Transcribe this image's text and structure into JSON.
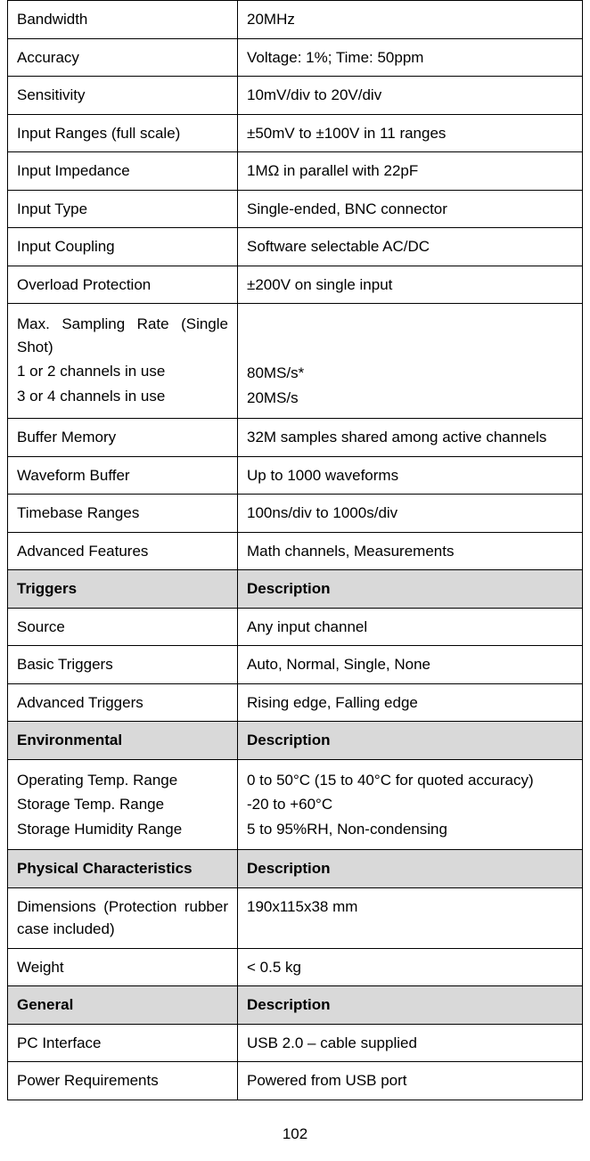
{
  "sections": [
    {
      "header": null,
      "rows": [
        {
          "label": "Bandwidth",
          "value": "20MHz"
        },
        {
          "label": "Accuracy",
          "value": "Voltage: 1%; Time: 50ppm"
        },
        {
          "label": "Sensitivity",
          "value": "10mV/div to 20V/div"
        },
        {
          "label": "Input Ranges (full scale)",
          "value": "±50mV to ±100V in 11 ranges"
        },
        {
          "label": "Input Impedance",
          "value": "1MΩ in parallel with 22pF"
        },
        {
          "label": "Input Type",
          "value": "Single-ended, BNC connector"
        },
        {
          "label": "Input Coupling",
          "value": "Software selectable AC/DC"
        },
        {
          "label": "Overload Protection",
          "value": "±200V on single input"
        },
        {
          "label_lines": [
            "Max. Sampling Rate (Single Shot)",
            "1 or 2 channels in use",
            "3 or 4 channels in use"
          ],
          "value_lines": [
            "",
            "",
            "80MS/s*",
            "20MS/s"
          ]
        },
        {
          "label": "Buffer Memory",
          "value": "32M samples shared among active channels"
        },
        {
          "label": "Waveform Buffer",
          "value": "Up to 1000 waveforms"
        },
        {
          "label": "Timebase Ranges",
          "value": "100ns/div to 1000s/div"
        },
        {
          "label": "Advanced Features",
          "value": "Math channels, Measurements"
        }
      ]
    },
    {
      "header": {
        "left": "Triggers",
        "right": "Description"
      },
      "rows": [
        {
          "label": "Source",
          "value": "Any input channel"
        },
        {
          "label": "Basic Triggers",
          "value": "Auto, Normal, Single, None"
        },
        {
          "label": "Advanced Triggers",
          "value": "Rising edge, Falling edge"
        }
      ]
    },
    {
      "header": {
        "left": "Environmental",
        "right": "Description"
      },
      "rows": [
        {
          "label_lines": [
            "Operating Temp. Range",
            "Storage Temp. Range",
            "Storage Humidity Range"
          ],
          "value_lines": [
            "0 to 50°C (15 to 40°C for quoted accuracy)",
            "-20 to +60°C",
            "5 to 95%RH, Non-condensing"
          ]
        }
      ]
    },
    {
      "header": {
        "left": "Physical Characteristics",
        "right": "Description"
      },
      "rows": [
        {
          "label": "Dimensions (Protection rubber case included)",
          "value": "190x115x38 mm"
        },
        {
          "label": "Weight",
          "value": "< 0.5 kg"
        }
      ]
    },
    {
      "header": {
        "left": "General",
        "right": "Description"
      },
      "rows": [
        {
          "label": "PC Interface",
          "value": "USB 2.0 – cable supplied"
        },
        {
          "label": "Power Requirements",
          "value": "Powered from USB port"
        }
      ]
    }
  ],
  "page_number": "102"
}
